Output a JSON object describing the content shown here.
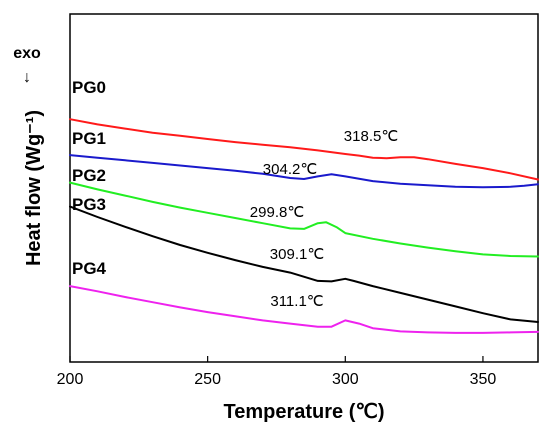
{
  "chart_data": {
    "type": "line",
    "xlabel": "Temperature (℃)",
    "ylabel": "Heat flow (Wg⁻¹)",
    "xlim": [
      200,
      370
    ],
    "x_ticks": [
      200,
      250,
      300,
      350
    ],
    "y_ticks": "none",
    "grid": false,
    "legend": "none",
    "annotations": [
      "exo",
      "↓"
    ],
    "series": [
      {
        "name": "PG0",
        "color": "#ff1a1a",
        "x": [
          200,
          210,
          220,
          230,
          240,
          250,
          260,
          270,
          280,
          290,
          300,
          305,
          310,
          315,
          320,
          325,
          330,
          340,
          350,
          360,
          370
        ],
        "y": [
          3.9,
          3.8,
          3.72,
          3.64,
          3.58,
          3.52,
          3.46,
          3.41,
          3.36,
          3.3,
          3.23,
          3.2,
          3.16,
          3.15,
          3.17,
          3.17,
          3.13,
          3.04,
          2.96,
          2.86,
          2.74
        ],
        "peak_label": "318.5℃"
      },
      {
        "name": "PG1",
        "color": "#1a1acc",
        "x": [
          200,
          210,
          220,
          230,
          240,
          250,
          260,
          270,
          280,
          285,
          290,
          295,
          300,
          310,
          320,
          330,
          340,
          350,
          360,
          365,
          370
        ],
        "y": [
          3.21,
          3.16,
          3.11,
          3.06,
          3.01,
          2.96,
          2.91,
          2.85,
          2.77,
          2.75,
          2.8,
          2.84,
          2.8,
          2.71,
          2.66,
          2.63,
          2.6,
          2.59,
          2.6,
          2.62,
          2.65
        ],
        "peak_label": "304.2℃"
      },
      {
        "name": "PG2",
        "color": "#22ee22",
        "x": [
          200,
          210,
          220,
          230,
          240,
          250,
          260,
          270,
          280,
          285,
          290,
          293,
          297,
          300,
          310,
          320,
          330,
          340,
          350,
          360,
          370
        ],
        "y": [
          2.68,
          2.55,
          2.43,
          2.31,
          2.2,
          2.1,
          2.0,
          1.9,
          1.8,
          1.79,
          1.9,
          1.92,
          1.82,
          1.71,
          1.6,
          1.51,
          1.43,
          1.36,
          1.3,
          1.27,
          1.26
        ],
        "peak_label": "299.8℃"
      },
      {
        "name": "PG3",
        "color": "#000000",
        "x": [
          200,
          210,
          220,
          230,
          240,
          250,
          260,
          270,
          280,
          290,
          295,
          300,
          303,
          310,
          320,
          330,
          340,
          350,
          360,
          370
        ],
        "y": [
          2.22,
          2.02,
          1.83,
          1.65,
          1.48,
          1.33,
          1.19,
          1.06,
          0.95,
          0.79,
          0.78,
          0.83,
          0.79,
          0.69,
          0.56,
          0.43,
          0.3,
          0.17,
          0.05,
          0.0
        ],
        "peak_label": "309.1℃"
      },
      {
        "name": "PG4",
        "color": "#ee22ee",
        "x": [
          200,
          210,
          220,
          230,
          240,
          250,
          260,
          270,
          280,
          290,
          295,
          300,
          305,
          310,
          320,
          330,
          340,
          350,
          360,
          370
        ],
        "y": [
          0.69,
          0.59,
          0.48,
          0.38,
          0.28,
          0.19,
          0.11,
          0.03,
          -0.03,
          -0.09,
          -0.09,
          0.03,
          -0.03,
          -0.12,
          -0.18,
          -0.2,
          -0.21,
          -0.21,
          -0.2,
          -0.19
        ],
        "peak_label": "311.1℃"
      }
    ]
  }
}
